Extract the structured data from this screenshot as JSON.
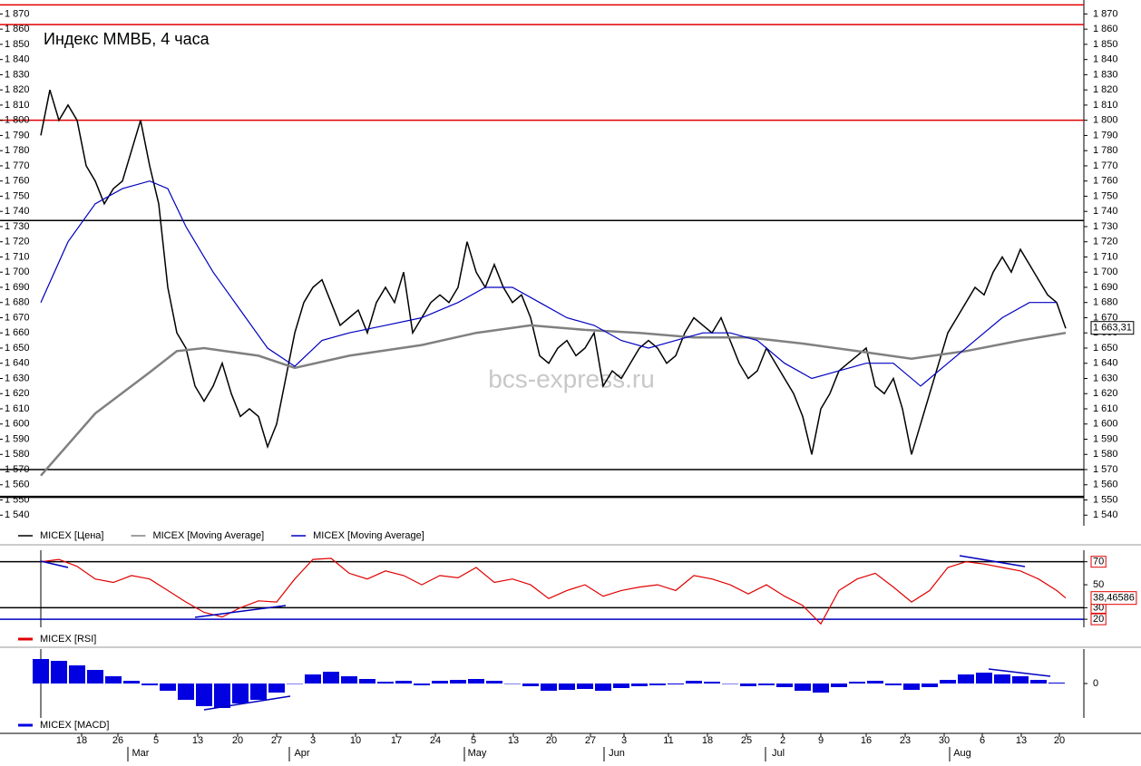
{
  "chart_data": [
    {
      "type": "line",
      "title": "Индекс ММВБ, 4 часа",
      "watermark": "bcs-express.ru",
      "xlim": [
        -4.5,
        115
      ],
      "ylim": [
        1533,
        1878
      ],
      "yticks": [
        {
          "value": 1870,
          "label": "1 870"
        },
        {
          "value": 1860,
          "label": "1 860"
        },
        {
          "value": 1850,
          "label": "1 850"
        },
        {
          "value": 1840,
          "label": "1 840"
        },
        {
          "value": 1830,
          "label": "1 830"
        },
        {
          "value": 1820,
          "label": "1 820"
        },
        {
          "value": 1810,
          "label": "1 810"
        },
        {
          "value": 1800,
          "label": "1 800"
        },
        {
          "value": 1790,
          "label": "1 790"
        },
        {
          "value": 1780,
          "label": "1 780"
        },
        {
          "value": 1770,
          "label": "1 770"
        },
        {
          "value": 1760,
          "label": "1 760"
        },
        {
          "value": 1750,
          "label": "1 750"
        },
        {
          "value": 1740,
          "label": "1 740"
        },
        {
          "value": 1730,
          "label": "1 730"
        },
        {
          "value": 1720,
          "label": "1 720"
        },
        {
          "value": 1710,
          "label": "1 710"
        },
        {
          "value": 1700,
          "label": "1 700"
        },
        {
          "value": 1690,
          "label": "1 690"
        },
        {
          "value": 1680,
          "label": "1 680"
        },
        {
          "value": 1670,
          "label": "1 670"
        },
        {
          "value": 1660,
          "label": "1 660"
        },
        {
          "value": 1650,
          "label": "1 650"
        },
        {
          "value": 1640,
          "label": "1 640"
        },
        {
          "value": 1630,
          "label": "1 630"
        },
        {
          "value": 1620,
          "label": "1 620"
        },
        {
          "value": 1610,
          "label": "1 610"
        },
        {
          "value": 1600,
          "label": "1 600"
        },
        {
          "value": 1590,
          "label": "1 590"
        },
        {
          "value": 1580,
          "label": "1 580"
        },
        {
          "value": 1570,
          "label": "1 570"
        },
        {
          "value": 1560,
          "label": "1 560"
        },
        {
          "value": 1550,
          "label": "1 550"
        },
        {
          "value": 1540,
          "label": "1 540"
        }
      ],
      "xticks": [
        {
          "value": 4.5,
          "label": "18"
        },
        {
          "value": 8.5,
          "label": "26"
        },
        {
          "value": 12.7,
          "label": "5"
        },
        {
          "value": 17.3,
          "label": "13"
        },
        {
          "value": 21.7,
          "label": "20"
        },
        {
          "value": 26,
          "label": "27"
        },
        {
          "value": 30,
          "label": "3"
        },
        {
          "value": 34.7,
          "label": "10"
        },
        {
          "value": 39.2,
          "label": "17"
        },
        {
          "value": 43.5,
          "label": "24"
        },
        {
          "value": 47.7,
          "label": "5"
        },
        {
          "value": 52.1,
          "label": "13"
        },
        {
          "value": 56.3,
          "label": "20"
        },
        {
          "value": 60.6,
          "label": "27"
        },
        {
          "value": 64.3,
          "label": "3"
        },
        {
          "value": 69.2,
          "label": "11"
        },
        {
          "value": 73.5,
          "label": "18"
        },
        {
          "value": 77.8,
          "label": "25"
        },
        {
          "value": 81.8,
          "label": "2"
        },
        {
          "value": 86,
          "label": "9"
        },
        {
          "value": 91,
          "label": "16"
        },
        {
          "value": 95.3,
          "label": "23"
        },
        {
          "value": 99.6,
          "label": "30"
        },
        {
          "value": 103.8,
          "label": "6"
        },
        {
          "value": 108.1,
          "label": "13"
        },
        {
          "value": 112.3,
          "label": "20"
        }
      ],
      "month_ticks": [
        {
          "value": 11,
          "label": "Mar"
        },
        {
          "value": 28.8,
          "label": "Apr"
        },
        {
          "value": 48.1,
          "label": "May"
        },
        {
          "value": 63.5,
          "label": "Jun"
        },
        {
          "value": 81.3,
          "label": "Jul"
        },
        {
          "value": 101.6,
          "label": "Aug"
        }
      ],
      "levels": [
        {
          "value": 1876,
          "color": "#e00000"
        },
        {
          "value": 1863,
          "color": "#e00000"
        },
        {
          "value": 1800,
          "color": "#e00000"
        },
        {
          "value": 1734,
          "color": "#000000"
        },
        {
          "value": 1570,
          "color": "#000000"
        },
        {
          "value": 1552,
          "color": "#000000"
        }
      ],
      "last_label": {
        "value": 1663.31,
        "label": "1 663,31"
      },
      "series": [
        {
          "name": "MICEX [Цена]",
          "color": "#000000",
          "x": [
            0,
            1,
            2,
            3,
            4,
            5,
            6,
            7,
            8,
            9,
            10,
            11,
            12,
            13,
            14,
            15,
            16,
            17,
            18,
            19,
            20,
            21,
            22,
            23,
            24,
            25,
            26,
            27,
            28,
            29,
            30,
            31,
            32,
            33,
            34,
            35,
            36,
            37,
            38,
            39,
            40,
            41,
            42,
            43,
            44,
            45,
            46,
            47,
            48,
            49,
            50,
            51,
            52,
            53,
            54,
            55,
            56,
            57,
            58,
            59,
            60,
            61,
            62,
            63,
            64,
            65,
            66,
            67,
            68,
            69,
            70,
            71,
            72,
            73,
            74,
            75,
            76,
            77,
            78,
            79,
            80,
            81,
            82,
            83,
            84,
            85,
            86,
            87,
            88,
            89,
            90,
            91,
            92,
            93,
            94,
            95,
            96,
            97,
            98,
            99,
            100,
            101,
            102,
            103,
            104,
            105,
            106,
            107,
            108,
            109,
            110,
            111,
            112,
            113
          ],
          "values": [
            1790,
            1820,
            1800,
            1810,
            1800,
            1770,
            1760,
            1745,
            1755,
            1760,
            1780,
            1800,
            1770,
            1745,
            1690,
            1660,
            1650,
            1625,
            1615,
            1625,
            1640,
            1620,
            1605,
            1610,
            1605,
            1585,
            1600,
            1630,
            1660,
            1680,
            1690,
            1695,
            1680,
            1665,
            1670,
            1675,
            1660,
            1680,
            1690,
            1680,
            1700,
            1660,
            1670,
            1680,
            1685,
            1680,
            1690,
            1720,
            1700,
            1690,
            1705,
            1690,
            1680,
            1685,
            1670,
            1645,
            1640,
            1650,
            1655,
            1645,
            1650,
            1660,
            1625,
            1635,
            1630,
            1640,
            1650,
            1655,
            1650,
            1640,
            1645,
            1660,
            1670,
            1665,
            1660,
            1670,
            1655,
            1640,
            1630,
            1635,
            1650,
            1640,
            1630,
            1620,
            1605,
            1580,
            1610,
            1620,
            1635,
            1640,
            1645,
            1650,
            1625,
            1620,
            1630,
            1610,
            1580,
            1600,
            1620,
            1640,
            1660,
            1670,
            1680,
            1690,
            1685,
            1700,
            1710,
            1700,
            1715,
            1705,
            1695,
            1685,
            1680,
            1663
          ]
        },
        {
          "name": "MICEX [Moving Average]",
          "color": "#808080",
          "x": [
            0,
            6,
            12,
            15,
            18,
            24,
            28,
            34,
            42,
            48,
            54,
            60,
            66,
            72,
            78,
            84,
            90,
            96,
            102,
            108,
            113
          ],
          "values": [
            1566,
            1607,
            1634,
            1648,
            1650,
            1645,
            1637,
            1645,
            1652,
            1660,
            1665,
            1662,
            1660,
            1657,
            1657,
            1653,
            1648,
            1643,
            1648,
            1655,
            1660
          ]
        },
        {
          "name": "MICEX [Moving Average]",
          "color": "#0000c0",
          "x": [
            0,
            3,
            6,
            9,
            12,
            14,
            16,
            19,
            22,
            25,
            28,
            31,
            34,
            38,
            42,
            46,
            49,
            52,
            55,
            58,
            61,
            64,
            67,
            70,
            73,
            76,
            79,
            82,
            85,
            88,
            91,
            94,
            97,
            100,
            103,
            106,
            109,
            112
          ],
          "values": [
            1680,
            1720,
            1745,
            1755,
            1760,
            1755,
            1730,
            1700,
            1675,
            1650,
            1638,
            1655,
            1660,
            1665,
            1670,
            1680,
            1690,
            1690,
            1680,
            1670,
            1665,
            1655,
            1650,
            1655,
            1660,
            1660,
            1655,
            1640,
            1630,
            1635,
            1640,
            1640,
            1625,
            1640,
            1655,
            1670,
            1680,
            1680
          ]
        }
      ]
    },
    {
      "type": "line",
      "ylim": [
        13,
        80
      ],
      "yticks": [
        70,
        50,
        30,
        20
      ],
      "levels": [
        {
          "value": 70,
          "color": "#000000"
        },
        {
          "value": 30,
          "color": "#000000"
        },
        {
          "value": 20,
          "color": "#0000c0"
        }
      ],
      "last_label": {
        "value": 38.46586,
        "label": "38,46586"
      },
      "series": [
        {
          "name": "MICEX [RSI]",
          "color": "#e00000",
          "x": [
            0,
            2,
            4,
            6,
            8,
            10,
            12,
            14,
            16,
            18,
            20,
            22,
            24,
            26,
            28,
            30,
            32,
            34,
            36,
            38,
            40,
            42,
            44,
            46,
            48,
            50,
            52,
            54,
            56,
            58,
            60,
            62,
            64,
            66,
            68,
            70,
            72,
            74,
            76,
            78,
            80,
            82,
            84,
            86,
            88,
            90,
            92,
            94,
            96,
            98,
            100,
            102,
            104,
            106,
            108,
            110,
            112,
            113
          ],
          "values": [
            70,
            72,
            66,
            55,
            52,
            58,
            55,
            45,
            35,
            26,
            22,
            30,
            36,
            35,
            55,
            72,
            73,
            60,
            55,
            62,
            58,
            50,
            58,
            56,
            65,
            52,
            55,
            50,
            38,
            45,
            50,
            40,
            45,
            48,
            50,
            45,
            58,
            55,
            50,
            42,
            50,
            40,
            32,
            16,
            45,
            55,
            60,
            48,
            35,
            45,
            65,
            70,
            68,
            65,
            62,
            55,
            45,
            38.46586
          ]
        }
      ]
    },
    {
      "type": "bar",
      "ylim": [
        -38,
        38
      ],
      "yticks": [
        0
      ],
      "series": [
        {
          "name": "MICEX [MACD]",
          "color": "#0000e0",
          "x": [
            0,
            2,
            4,
            6,
            8,
            10,
            12,
            14,
            16,
            18,
            20,
            22,
            24,
            26,
            28,
            30,
            32,
            34,
            36,
            38,
            40,
            42,
            44,
            46,
            48,
            50,
            52,
            54,
            56,
            58,
            60,
            62,
            64,
            66,
            68,
            70,
            72,
            74,
            76,
            78,
            80,
            82,
            84,
            86,
            88,
            90,
            92,
            94,
            96,
            98,
            100,
            102,
            104,
            106,
            108,
            110,
            112
          ],
          "values": [
            27,
            25,
            20,
            15,
            8,
            3,
            -2,
            -8,
            -18,
            -25,
            -27,
            -22,
            -18,
            -10,
            0,
            10,
            13,
            8,
            5,
            2,
            3,
            -2,
            3,
            4,
            5,
            3,
            0,
            -3,
            -8,
            -7,
            -6,
            -8,
            -5,
            -3,
            -2,
            -1,
            3,
            2,
            0,
            -3,
            -2,
            -4,
            -8,
            -10,
            -4,
            2,
            3,
            -2,
            -7,
            -4,
            4,
            10,
            12,
            10,
            8,
            4,
            1
          ]
        }
      ]
    }
  ]
}
